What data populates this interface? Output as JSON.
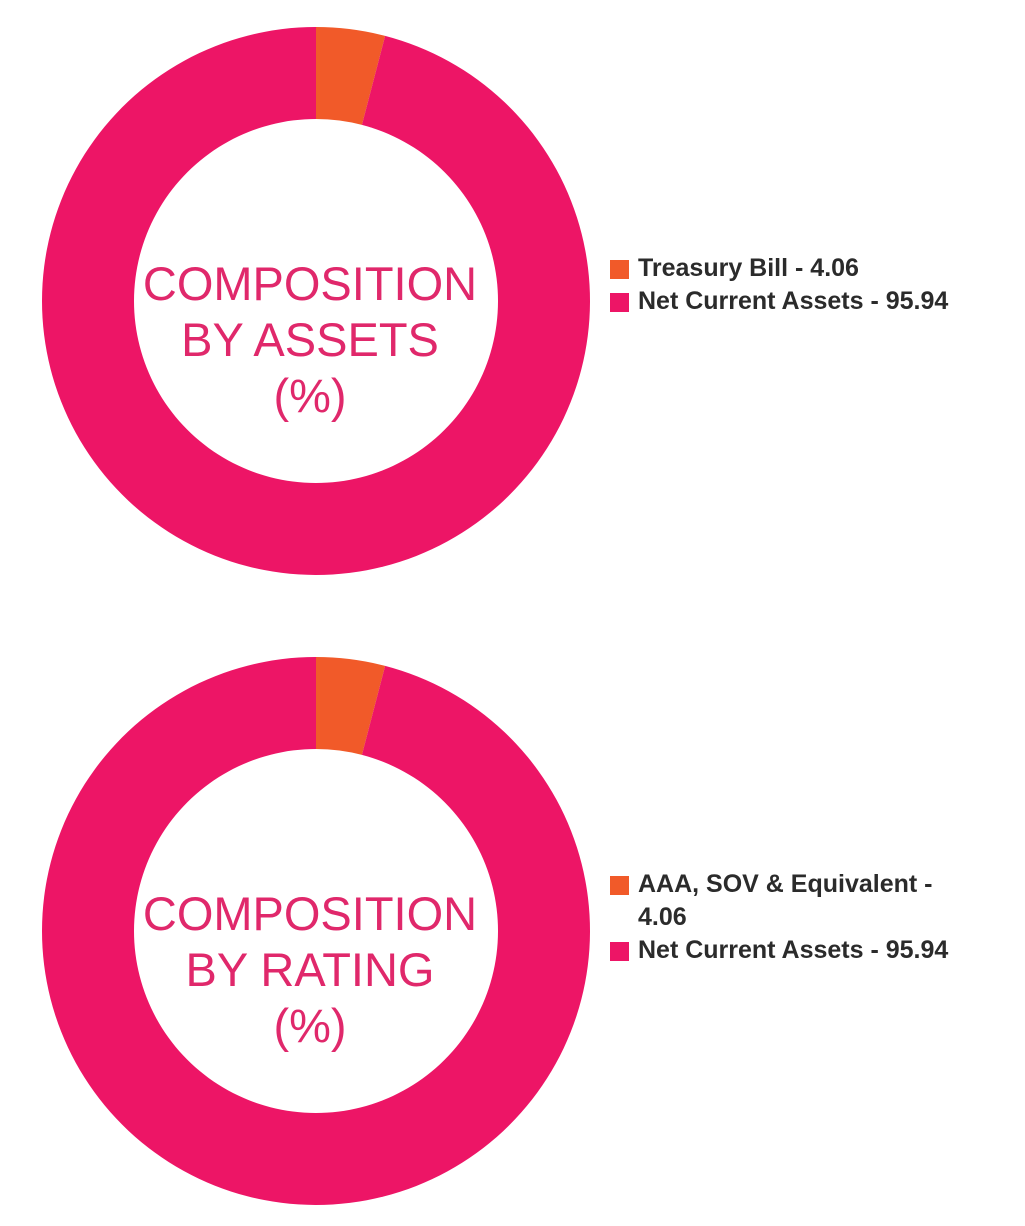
{
  "chart_data": [
    {
      "type": "pie",
      "title_lines": [
        "COMPOSITION",
        "BY ASSETS",
        "(%)"
      ],
      "slices": [
        {
          "label": "Treasury Bill - 4.06",
          "value": 4.06,
          "color": "#f15a29"
        },
        {
          "label": "Net Current Assets - 95.94",
          "value": 95.94,
          "color": "#ed1566"
        }
      ],
      "legend": "right"
    },
    {
      "type": "pie",
      "title_lines": [
        "COMPOSITION",
        "BY RATING",
        "(%)"
      ],
      "slices": [
        {
          "label": "AAA, SOV & Equivalent - 4.06",
          "value": 4.06,
          "color": "#f15a29"
        },
        {
          "label": "Net Current Assets - 95.94",
          "value": 95.94,
          "color": "#ed1566"
        }
      ],
      "legend": "right"
    }
  ]
}
